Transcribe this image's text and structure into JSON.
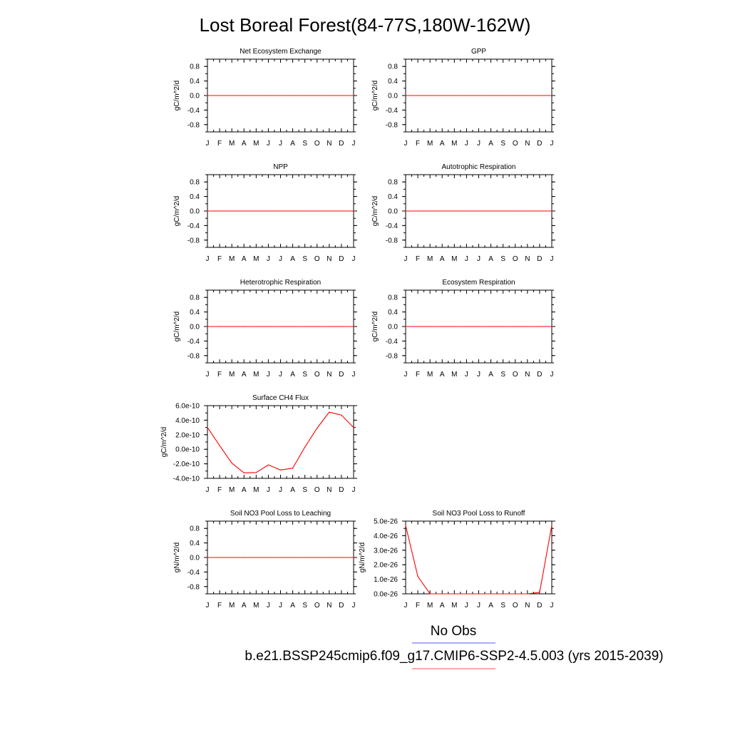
{
  "title": "Lost Boreal Forest(84-77S,180W-162W)",
  "months": [
    "J",
    "F",
    "M",
    "A",
    "M",
    "J",
    "J",
    "A",
    "S",
    "O",
    "N",
    "D",
    "J"
  ],
  "legend": {
    "obs_label": "No Obs",
    "model_label": "b.e21.BSSP245cmip6.f09_g17.CMIP6-SSP2-4.5.003 (yrs 2015-2039)",
    "obs_color": "#7777ff",
    "model_color": "#ff7777"
  },
  "line_color": "#ff0000",
  "chart_data": [
    {
      "type": "line",
      "title": "Net Ecosystem Exchange",
      "ylabel": "gC/m^2/d",
      "ylim": [
        -1.0,
        1.0
      ],
      "yticks": [
        0.8,
        0.4,
        0.0,
        -0.4,
        -0.8
      ],
      "yticklabels": [
        "0.8",
        "0.4",
        "0.0",
        "-0.4",
        "-0.8"
      ],
      "values": [
        0,
        0,
        0,
        0,
        0,
        0,
        0,
        0,
        0,
        0,
        0,
        0,
        0
      ]
    },
    {
      "type": "line",
      "title": "GPP",
      "ylabel": "gC/m^2/d",
      "ylim": [
        -1.0,
        1.0
      ],
      "yticks": [
        0.8,
        0.4,
        0.0,
        -0.4,
        -0.8
      ],
      "yticklabels": [
        "0.8",
        "0.4",
        "0.0",
        "-0.4",
        "-0.8"
      ],
      "values": [
        0,
        0,
        0,
        0,
        0,
        0,
        0,
        0,
        0,
        0,
        0,
        0,
        0
      ]
    },
    {
      "type": "line",
      "title": "NPP",
      "ylabel": "gC/m^2/d",
      "ylim": [
        -1.0,
        1.0
      ],
      "yticks": [
        0.8,
        0.4,
        0.0,
        -0.4,
        -0.8
      ],
      "yticklabels": [
        "0.8",
        "0.4",
        "0.0",
        "-0.4",
        "-0.8"
      ],
      "values": [
        0,
        0,
        0,
        0,
        0,
        0,
        0,
        0,
        0,
        0,
        0,
        0,
        0
      ]
    },
    {
      "type": "line",
      "title": "Autotrophic Respiration",
      "ylabel": "gC/m^2/d",
      "ylim": [
        -1.0,
        1.0
      ],
      "yticks": [
        0.8,
        0.4,
        0.0,
        -0.4,
        -0.8
      ],
      "yticklabels": [
        "0.8",
        "0.4",
        "0.0",
        "-0.4",
        "-0.8"
      ],
      "values": [
        0,
        0,
        0,
        0,
        0,
        0,
        0,
        0,
        0,
        0,
        0,
        0,
        0
      ]
    },
    {
      "type": "line",
      "title": "Heterotrophic Respiration",
      "ylabel": "gC/m^2/d",
      "ylim": [
        -1.0,
        1.0
      ],
      "yticks": [
        0.8,
        0.4,
        0.0,
        -0.4,
        -0.8
      ],
      "yticklabels": [
        "0.8",
        "0.4",
        "0.0",
        "-0.4",
        "-0.8"
      ],
      "values": [
        0,
        0,
        0,
        0,
        0,
        0,
        0,
        0,
        0,
        0,
        0,
        0,
        0
      ]
    },
    {
      "type": "line",
      "title": "Ecosystem Respiration",
      "ylabel": "gC/m^2/d",
      "ylim": [
        -1.0,
        1.0
      ],
      "yticks": [
        0.8,
        0.4,
        0.0,
        -0.4,
        -0.8
      ],
      "yticklabels": [
        "0.8",
        "0.4",
        "0.0",
        "-0.4",
        "-0.8"
      ],
      "values": [
        0,
        0,
        0,
        0,
        0,
        0,
        0,
        0,
        0,
        0,
        0,
        0,
        0
      ]
    },
    {
      "type": "line",
      "title": "Surface CH4 Flux",
      "ylabel": "gC/m^2/d",
      "ylim": [
        -4e-10,
        6e-10
      ],
      "yticks": [
        6e-10,
        4e-10,
        2e-10,
        0,
        -2e-10,
        -4e-10
      ],
      "yticklabels": [
        "6.0e-10",
        "4.0e-10",
        "2.0e-10",
        "0.0e-10",
        "-2.0e-10",
        "-4.0e-10"
      ],
      "values": [
        3e-10,
        5e-11,
        -1.9e-10,
        -3.25e-10,
        -3.2e-10,
        -2.15e-10,
        -2.85e-10,
        -2.6e-10,
        3e-11,
        2.9e-10,
        5.1e-10,
        4.7e-10,
        3e-10
      ]
    },
    null,
    {
      "type": "line",
      "title": "Soil NO3 Pool Loss to Leaching",
      "ylabel": "gN/m^2/d",
      "ylim": [
        -1.0,
        1.0
      ],
      "yticks": [
        0.8,
        0.4,
        0.0,
        -0.4,
        -0.8
      ],
      "yticklabels": [
        "0.8",
        "0.4",
        "0.0",
        "-0.4",
        "-0.8"
      ],
      "values": [
        0,
        0,
        0,
        0,
        0,
        0,
        0,
        0,
        0,
        0,
        0,
        0,
        0
      ]
    },
    {
      "type": "line",
      "title": "Soil NO3 Pool Loss to Runoff",
      "ylabel": "gN/m^2/d",
      "ylim": [
        0,
        5e-26
      ],
      "yticks": [
        5e-26,
        4e-26,
        3e-26,
        2e-26,
        1e-26,
        0
      ],
      "yticklabels": [
        "5.0e-26",
        "4.0e-26",
        "3.0e-26",
        "2.0e-26",
        "1.0e-26",
        "0.0e-26"
      ],
      "values": [
        4.7e-26,
        1.2e-26,
        0,
        0,
        0,
        0,
        0,
        0,
        0,
        0,
        0,
        1e-27,
        4.7e-26
      ]
    }
  ]
}
